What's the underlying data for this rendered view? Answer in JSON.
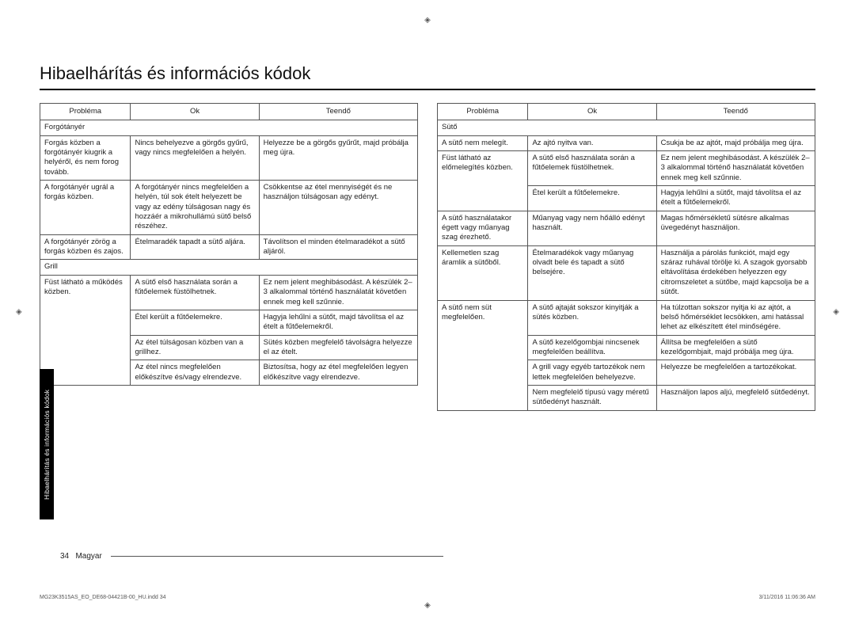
{
  "page": {
    "title": "Hibaelhárítás és információs kódok",
    "side_tab": "Hibaelhárítás és információs kódok",
    "footer_page": "34",
    "footer_lang": "Magyar",
    "print_doc": "MG23K3515AS_EO_DE68-04421B-00_HU.indd   34",
    "print_time": "3/11/2016   11:06:36 AM"
  },
  "headers": {
    "problem": "Probléma",
    "cause": "Ok",
    "action": "Teendő"
  },
  "left": {
    "sec1": "Forgótányér",
    "r1": {
      "p": "Forgás közben a forgótányér kiugrik a helyéről, és nem forog tovább.",
      "c": "Nincs behelyezve a görgős gyűrű, vagy nincs megfelelően a helyén.",
      "a": "Helyezze be a görgős gyűrűt, majd próbálja meg újra."
    },
    "r2": {
      "p": "A forgótányér ugrál a forgás közben.",
      "c": "A forgótányér nincs megfelelően a helyén, túl sok ételt helyezett be vagy az edény túlságosan nagy és hozzáér a mikrohullámú sütő belső részéhez.",
      "a": "Csökkentse az étel mennyiségét és ne használjon túlságosan agy edényt."
    },
    "r3": {
      "p": "A forgótányér zörög a forgás közben és zajos.",
      "c": "Ételmaradék tapadt a sütő aljára.",
      "a": "Távolítson el minden ételmaradékot a sütő aljáról."
    },
    "sec2": "Grill",
    "r4": {
      "p": "Füst látható a működés közben.",
      "c": "A sütő első használata során a fűtőelemek füstölhetnek.",
      "a": "Ez nem jelent meghibásodást. A készülék 2–3 alkalommal történő használatát követően ennek meg kell szűnnie."
    },
    "r5": {
      "c": "Étel került a fűtőelemekre.",
      "a": "Hagyja lehűlni a sütőt, majd távolítsa el az ételt a fűtőelemekről."
    },
    "r6": {
      "c": "Az étel túlságosan közben van a grillhez.",
      "a": "Sütés közben megfelelő távolságra helyezze el az ételt."
    },
    "r7": {
      "c": "Az étel nincs megfelelően előkészítve és/vagy elrendezve.",
      "a": "Biztosítsa, hogy az étel megfelelően legyen előkészítve vagy elrendezve."
    }
  },
  "right": {
    "sec1": "Sütő",
    "r1": {
      "p": "A sütő nem melegít.",
      "c": "Az ajtó nyitva van.",
      "a": "Csukja be az ajtót, majd próbálja meg újra."
    },
    "r2": {
      "p": "Füst látható az előmelegítés közben.",
      "c": "A sütő első használata során a fűtőelemek füstölhetnek.",
      "a": "Ez nem jelent meghibásodást. A készülék 2–3 alkalommal történő használatát követően ennek meg kell szűnnie."
    },
    "r3": {
      "c": "Étel került a fűtőelemekre.",
      "a": "Hagyja lehűlni a sütőt, majd távolítsa el az ételt a fűtőelemekről."
    },
    "r4": {
      "p": "A sütő használatakor égett vagy műanyag szag érezhető.",
      "c": "Műanyag vagy nem hőálló edényt használt.",
      "a": "Magas hőmérsékletű sütésre alkalmas üvegedényt használjon."
    },
    "r5": {
      "p": "Kellemetlen szag áramlik a sütőből.",
      "c": "Ételmaradékok vagy műanyag olvadt bele és tapadt a sütő belsejére.",
      "a": "Használja a párolás funkciót, majd egy száraz ruhával törölje ki. A szagok gyorsabb eltávolítása érdekében helyezzen egy citromszeletet a sütőbe, majd kapcsolja be a sütőt."
    },
    "r6": {
      "p": "A sütő nem süt megfelelően.",
      "c": "A sütő ajtaját sokszor kinyitják a sütés közben.",
      "a": "Ha túlzottan sokszor nyitja ki az ajtót, a belső hőmérséklet lecsökken, ami hatással lehet az elkészített étel minőségére."
    },
    "r7": {
      "c": "A sütő kezelőgombjai nincsenek megfelelően beállítva.",
      "a": "Állítsa be megfelelően a sütő kezelőgombjait, majd próbálja meg újra."
    },
    "r8": {
      "c": "A grill vagy egyéb tartozékok nem lettek megfelelően behelyezve.",
      "a": "Helyezze be megfelelően a tartozékokat."
    },
    "r9": {
      "c": "Nem megfelelő típusú vagy méretű sütőedényt használt.",
      "a": "Használjon lapos aljú, megfelelő sütőedényt."
    }
  }
}
